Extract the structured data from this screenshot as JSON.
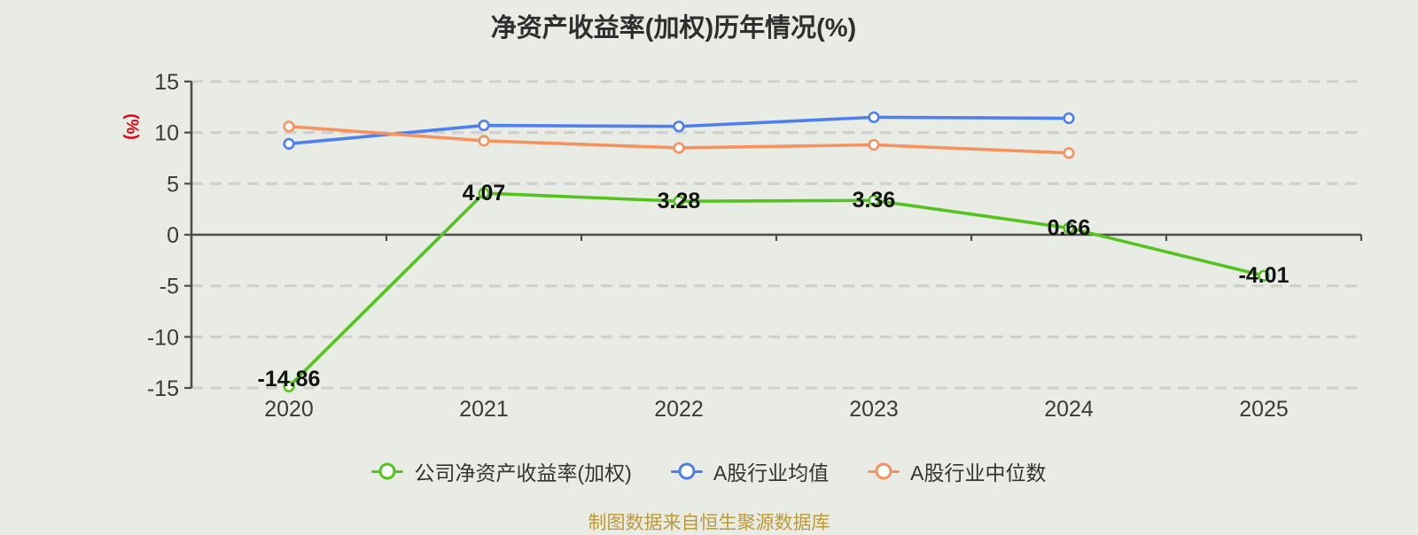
{
  "chart_data": {
    "type": "line",
    "title": "净资产收益率(加权)历年情况(%)",
    "y_axis_name": "(%)",
    "footer": "制图数据来自恒生聚源数据库",
    "categories": [
      "2020",
      "2021",
      "2022",
      "2023",
      "2024",
      "2025"
    ],
    "ylim": [
      -15,
      15
    ],
    "y_ticks": [
      15,
      10,
      5,
      0,
      -5,
      -10,
      -15
    ],
    "grid": "horizontal dashed gridlines, solid line at 0",
    "legend_position": "bottom",
    "series": [
      {
        "name": "公司净资产收益率(加权)",
        "color": "#53c41d",
        "values": [
          -14.86,
          4.07,
          3.28,
          3.36,
          0.66,
          -4.01
        ],
        "labels": [
          "-14.86",
          "4.07",
          "3.28",
          "3.36",
          "0.66",
          "-4.01"
        ]
      },
      {
        "name": "A股行业均值",
        "color": "#4e7ff1",
        "values": [
          8.9,
          10.7,
          10.6,
          11.5,
          11.4,
          null
        ],
        "labels": null
      },
      {
        "name": "A股行业中位数",
        "color": "#f6925f",
        "values": [
          10.6,
          9.2,
          8.5,
          8.8,
          8.0,
          null
        ],
        "labels": null
      }
    ]
  },
  "colors": {
    "background": "#e9ece5",
    "axis": "#4c4c4c",
    "grid": "#cfcfcf",
    "tick_label": "#3a3a3a",
    "data_label": "#121212",
    "marker_fill": "#ffffff",
    "y_unit": "#e60012",
    "title": "#2e2e2e",
    "footer": "#bc9a3a"
  }
}
